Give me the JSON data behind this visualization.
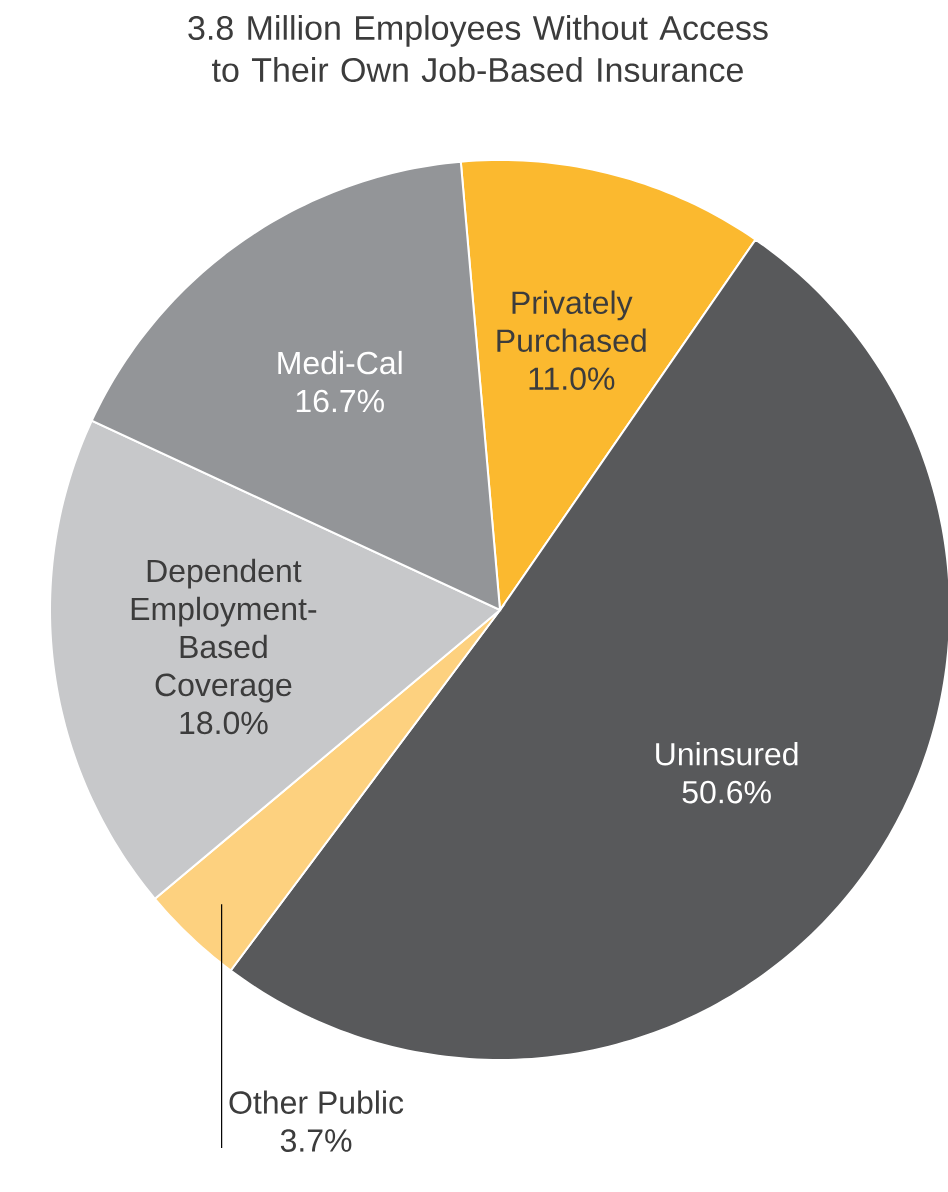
{
  "chart_data": {
    "type": "pie",
    "title": "3.8 Million Employees Without Access to Their Own Job-Based Insurance",
    "categories": [
      "Privately Purchased",
      "Uninsured",
      "Other Public",
      "Dependent Employment-Based Coverage",
      "Medi-Cal"
    ],
    "values": [
      11.0,
      50.6,
      3.7,
      18.0,
      16.7
    ],
    "value_labels": [
      "11.0%",
      "50.6%",
      "3.7%",
      "18.0%",
      "16.7%"
    ],
    "colors": [
      "#fbb92f",
      "#58595b",
      "#fdd17f",
      "#c7c8ca",
      "#939598"
    ]
  }
}
